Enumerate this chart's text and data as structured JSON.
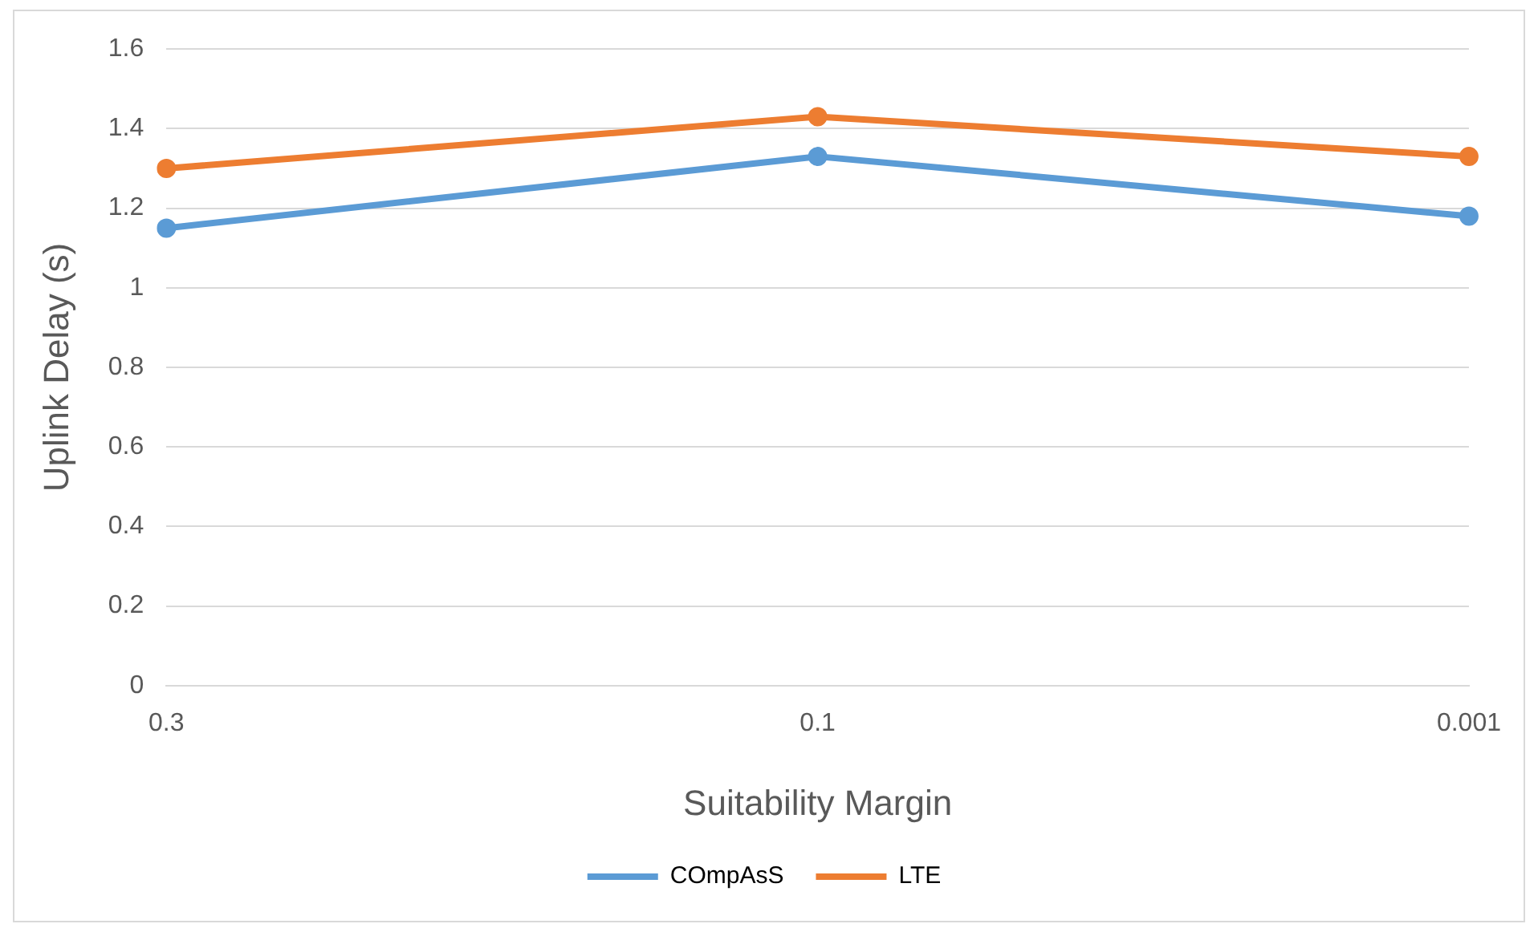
{
  "chart_data": {
    "type": "line",
    "xlabel": "Suitability Margin",
    "ylabel": "Uplink Delay (s)",
    "categories": [
      "0.3",
      "0.1",
      "0.001"
    ],
    "series": [
      {
        "name": "COmpAsS",
        "color": "#5b9bd5",
        "values": [
          1.15,
          1.33,
          1.18
        ]
      },
      {
        "name": "LTE",
        "color": "#ed7d31",
        "values": [
          1.3,
          1.43,
          1.33
        ]
      }
    ],
    "ylim": [
      0,
      1.6
    ],
    "yticks": [
      0,
      0.2,
      0.4,
      0.6,
      0.8,
      1,
      1.2,
      1.4,
      1.6
    ],
    "grid": "y",
    "legend": "bottom",
    "marker": "circle",
    "line_style": "solid"
  }
}
